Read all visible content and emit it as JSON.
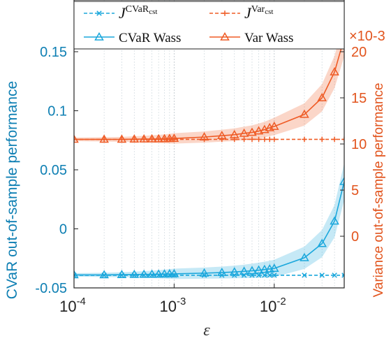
{
  "chart_data": {
    "type": "line",
    "x_label": "ε",
    "y_label_left": "CVaR out-of-sample performance",
    "y_label_right": "Variance out-of-sample performance",
    "right_axis_exponent": "×10-3",
    "x_scale": "log",
    "xlim": [
      0.0001,
      0.05
    ],
    "ylim_left": [
      -0.05,
      0.15
    ],
    "ylim_right": [
      -5.6,
      20.0
    ],
    "grid": "vertical minor/major dashed",
    "x_ticks": [
      {
        "value": 0.0001,
        "base": "10",
        "exp": "-4"
      },
      {
        "value": 0.001,
        "base": "10",
        "exp": "-3"
      },
      {
        "value": 0.01,
        "base": "10",
        "exp": "-2"
      }
    ],
    "y_ticks_left": [
      {
        "value": -0.05,
        "label": "-0.05"
      },
      {
        "value": 0,
        "label": "0"
      },
      {
        "value": 0.05,
        "label": "0.05"
      },
      {
        "value": 0.1,
        "label": "0.1"
      },
      {
        "value": 0.15,
        "label": "0.15"
      }
    ],
    "y_ticks_right": [
      {
        "value": 0,
        "label": "0"
      },
      {
        "value": 5,
        "label": "5"
      },
      {
        "value": 10,
        "label": "10"
      },
      {
        "value": 15,
        "label": "15"
      },
      {
        "value": 20,
        "label": "20"
      }
    ],
    "legend": {
      "placement": "top",
      "entries": [
        {
          "key": "cvar_cst",
          "base": "J",
          "sup_main": "CVaR",
          "sup_sub": "cst"
        },
        {
          "key": "var_cst",
          "base": "J",
          "sup_main": "Var",
          "sup_sub": "cst"
        },
        {
          "key": "cvar_wass",
          "text": "CVaR Wass"
        },
        {
          "key": "var_wass",
          "text": "Var Wass"
        }
      ]
    },
    "x": [
      0.0001,
      0.0002,
      0.0003,
      0.0004,
      0.0005,
      0.0006,
      0.0007,
      0.0008,
      0.0009,
      0.001,
      0.002,
      0.003,
      0.004,
      0.005,
      0.006,
      0.007,
      0.008,
      0.009,
      0.01,
      0.02,
      0.03,
      0.04,
      0.05
    ],
    "series": [
      {
        "key": "cvar_wass",
        "axis": "left",
        "color": "#1aa7dc",
        "marker": "triangle",
        "style": "solid",
        "band": true,
        "values": [
          -0.039,
          -0.039,
          -0.0388,
          -0.0387,
          -0.0386,
          -0.0385,
          -0.0384,
          -0.0383,
          -0.0382,
          -0.0381,
          -0.0375,
          -0.037,
          -0.0365,
          -0.036,
          -0.0355,
          -0.035,
          -0.0345,
          -0.034,
          -0.0335,
          -0.0245,
          -0.0125,
          0.0065,
          0.04
        ]
      },
      {
        "key": "cvar_cst",
        "axis": "left",
        "color": "#1aa7dc",
        "marker": "x",
        "style": "dashed",
        "band": false,
        "values": [
          -0.0393,
          -0.0393,
          -0.0393,
          -0.0393,
          -0.0393,
          -0.0393,
          -0.0393,
          -0.0393,
          -0.0393,
          -0.0393,
          -0.0393,
          -0.0393,
          -0.0393,
          -0.0393,
          -0.0393,
          -0.0393,
          -0.0393,
          -0.0393,
          -0.0393,
          -0.0393,
          -0.0393,
          -0.0393,
          -0.0393
        ]
      },
      {
        "key": "var_wass",
        "axis": "right",
        "color": "#ef5b25",
        "marker": "triangle",
        "style": "solid",
        "band": true,
        "values": [
          10.5,
          10.5,
          10.5,
          10.52,
          10.53,
          10.54,
          10.55,
          10.56,
          10.58,
          10.6,
          10.75,
          10.9,
          11.0,
          11.15,
          11.25,
          11.4,
          11.55,
          11.75,
          11.9,
          13.2,
          15.0,
          17.8,
          21.5
        ]
      },
      {
        "key": "var_cst",
        "axis": "right",
        "color": "#ef5b25",
        "marker": "plus",
        "style": "dashed",
        "band": false,
        "values": [
          10.5,
          10.5,
          10.5,
          10.5,
          10.5,
          10.5,
          10.5,
          10.5,
          10.5,
          10.5,
          10.5,
          10.5,
          10.5,
          10.5,
          10.5,
          10.5,
          10.5,
          10.5,
          10.5,
          10.5,
          10.5,
          10.5,
          10.5
        ]
      }
    ]
  }
}
